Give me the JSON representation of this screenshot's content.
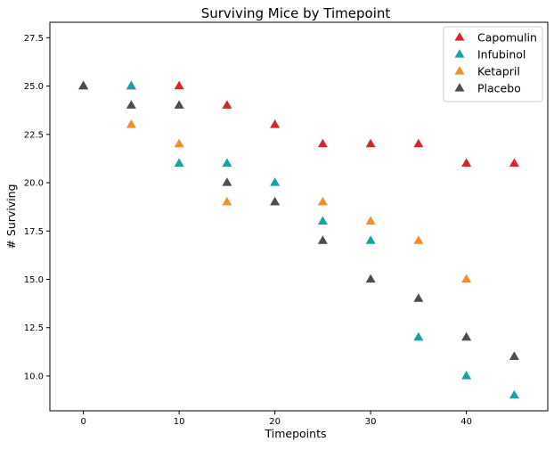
{
  "chart_data": {
    "type": "scatter",
    "title": "Surviving Mice by Timepoint",
    "xlabel": "Timepoints",
    "ylabel": "# Surviving",
    "xlim": [
      -3.5,
      48.5
    ],
    "ylim": [
      8.2,
      28.3
    ],
    "xticks": [
      0,
      10,
      20,
      30,
      40
    ],
    "xtick_labels": [
      "0",
      "10",
      "20",
      "30",
      "40"
    ],
    "yticks": [
      10.0,
      12.5,
      15.0,
      17.5,
      20.0,
      22.5,
      25.0,
      27.5
    ],
    "ytick_labels": [
      "10.0",
      "12.5",
      "15.0",
      "17.5",
      "20.0",
      "22.5",
      "25.0",
      "27.5"
    ],
    "grid": false,
    "legend_position": "top-right",
    "marker": "triangle",
    "series": [
      {
        "name": "Capomulin",
        "color": "#d62728",
        "x": [
          0,
          5,
          10,
          15,
          20,
          25,
          30,
          35,
          40,
          45
        ],
        "y": [
          25,
          25,
          25,
          24,
          23,
          22,
          22,
          22,
          21,
          21
        ]
      },
      {
        "name": "Infubinol",
        "color": "#17a2a2",
        "x": [
          0,
          5,
          10,
          15,
          20,
          25,
          30,
          35,
          40,
          45
        ],
        "y": [
          25,
          25,
          21,
          21,
          20,
          18,
          17,
          12,
          10,
          9
        ]
      },
      {
        "name": "Ketapril",
        "color": "#f28e2b",
        "x": [
          0,
          5,
          10,
          15,
          20,
          25,
          30,
          35,
          40,
          45
        ],
        "y": [
          25,
          23,
          22,
          19,
          19,
          19,
          18,
          17,
          15,
          11
        ]
      },
      {
        "name": "Placebo",
        "color": "#4d4d4d",
        "x": [
          0,
          5,
          10,
          15,
          20,
          25,
          30,
          35,
          40,
          45
        ],
        "y": [
          25,
          24,
          24,
          20,
          19,
          17,
          15,
          14,
          12,
          11
        ]
      }
    ]
  }
}
